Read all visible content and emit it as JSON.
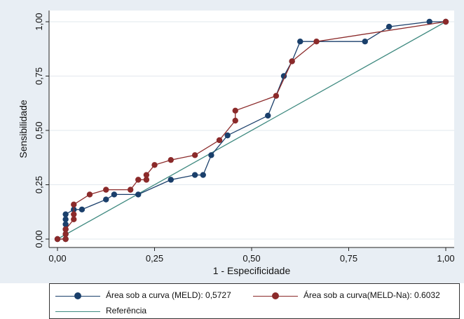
{
  "chart_data": {
    "type": "line",
    "xlabel": "1 - Especificidade",
    "ylabel": "Sensibilidade",
    "xlim": [
      0,
      1
    ],
    "ylim": [
      0,
      1
    ],
    "xticks": [
      "0,00",
      "0,25",
      "0,50",
      "0,75",
      "1,00"
    ],
    "yticks": [
      "0,00",
      "0,25",
      "0,50",
      "0,75",
      "1,00"
    ],
    "grid": true,
    "legend_position": "bottom",
    "series": [
      {
        "name": "Área sob a curva (MELD): 0,5727",
        "color": "#1a3f6b",
        "marker": "circle",
        "points": [
          [
            0,
            0
          ],
          [
            0.021,
            0
          ],
          [
            0.021,
            0.023
          ],
          [
            0.021,
            0.045
          ],
          [
            0.021,
            0.068
          ],
          [
            0.021,
            0.091
          ],
          [
            0.021,
            0.114
          ],
          [
            0.042,
            0.136
          ],
          [
            0.063,
            0.136
          ],
          [
            0.125,
            0.182
          ],
          [
            0.146,
            0.205
          ],
          [
            0.208,
            0.205
          ],
          [
            0.292,
            0.273
          ],
          [
            0.354,
            0.295
          ],
          [
            0.375,
            0.295
          ],
          [
            0.396,
            0.386
          ],
          [
            0.438,
            0.477
          ],
          [
            0.542,
            0.568
          ],
          [
            0.583,
            0.75
          ],
          [
            0.604,
            0.818
          ],
          [
            0.625,
            0.909
          ],
          [
            0.792,
            0.909
          ],
          [
            0.854,
            0.977
          ],
          [
            0.958,
            1.0
          ],
          [
            1.0,
            1.0
          ]
        ]
      },
      {
        "name": "Área sob a curva(MELD-Na): 0.6032",
        "color": "#8b2a2a",
        "marker": "circle",
        "points": [
          [
            0,
            0
          ],
          [
            0.021,
            0
          ],
          [
            0.021,
            0.023
          ],
          [
            0.021,
            0.045
          ],
          [
            0.042,
            0.091
          ],
          [
            0.042,
            0.114
          ],
          [
            0.042,
            0.159
          ],
          [
            0.083,
            0.205
          ],
          [
            0.125,
            0.227
          ],
          [
            0.188,
            0.227
          ],
          [
            0.208,
            0.273
          ],
          [
            0.229,
            0.273
          ],
          [
            0.229,
            0.295
          ],
          [
            0.25,
            0.341
          ],
          [
            0.292,
            0.364
          ],
          [
            0.354,
            0.386
          ],
          [
            0.417,
            0.455
          ],
          [
            0.458,
            0.545
          ],
          [
            0.458,
            0.591
          ],
          [
            0.563,
            0.659
          ],
          [
            0.604,
            0.818
          ],
          [
            0.667,
            0.909
          ],
          [
            1.0,
            1.0
          ]
        ]
      },
      {
        "name": "Referência",
        "color": "#3f8a80",
        "marker": "none",
        "points": [
          [
            0,
            0
          ],
          [
            1,
            1
          ]
        ]
      }
    ]
  },
  "colors": {
    "plot_background": "#e8eef4",
    "plot_area": "#ffffff",
    "grid": "#e2e8ee",
    "axis": "#222222"
  }
}
